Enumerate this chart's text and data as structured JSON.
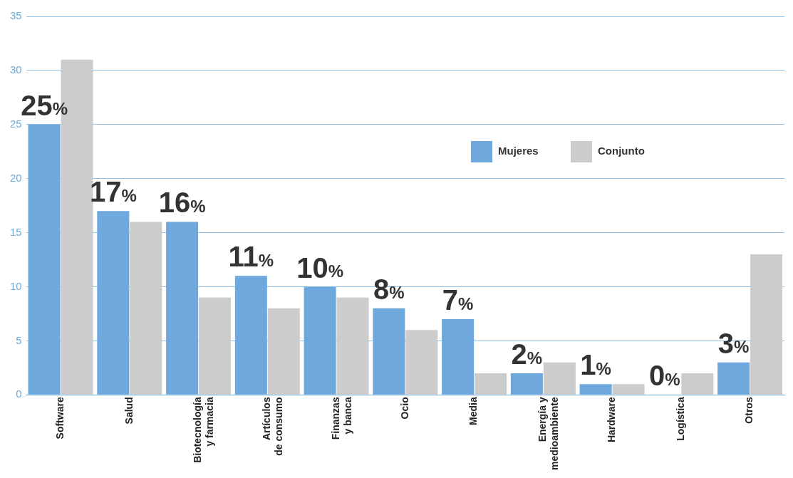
{
  "chart_data": {
    "type": "bar",
    "categories": [
      "Software",
      "Salud",
      "Biotecnología y farmacia",
      "Artículos de consumo",
      "Finanzas y banca",
      "Ocio",
      "Media",
      "Energía y medioambiente",
      "Hardware",
      "Logística",
      "Otros"
    ],
    "series": [
      {
        "name": "Mujeres",
        "color": "#6fa8dc",
        "values": [
          25,
          17,
          16,
          11,
          10,
          8,
          7,
          2,
          1,
          0,
          3
        ],
        "value_labels": [
          "25%",
          "17%",
          "16%",
          "11%",
          "10%",
          "8%",
          "7%",
          "2%",
          "1%",
          "0%",
          "3%"
        ]
      },
      {
        "name": "Conjunto",
        "color": "#cccccc",
        "values": [
          31,
          16,
          9,
          8,
          9,
          6,
          2,
          3,
          1,
          2,
          13
        ]
      }
    ],
    "ylim": [
      0,
      35
    ],
    "yticks": [
      0,
      5,
      10,
      15,
      20,
      25,
      30,
      35
    ],
    "grid": "y",
    "legend": "top right"
  }
}
